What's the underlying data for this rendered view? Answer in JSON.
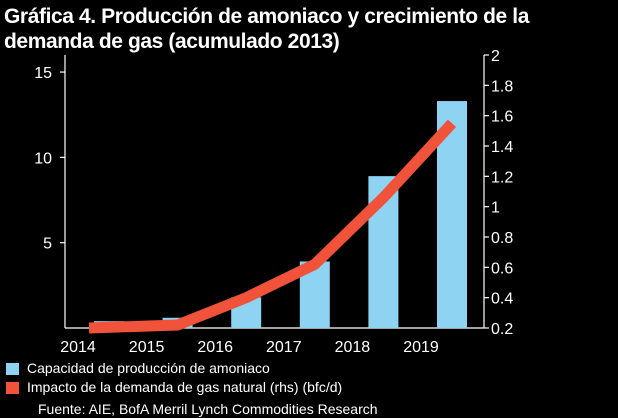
{
  "title": "Gráfica 4. Producción de amoniaco y crecimiento de la demanda de gas (acumulado 2013)",
  "source": "Fuente: AIE, BofA Merril Lynch Commodities Research",
  "colors": {
    "background": "#000000",
    "bars": "#8ed3f2",
    "line": "#f0523a",
    "text": "#ffffff"
  },
  "chart_data": {
    "type": "bar+line",
    "title": "Gráfica 4. Producción de amoniaco y crecimiento de la demanda de gas (acumulado 2013)",
    "x_ticks": [
      "2014",
      "2015",
      "2016",
      "2017",
      "2018",
      "2019"
    ],
    "y_left": {
      "ticks": [
        "5",
        "10",
        "15"
      ],
      "range": [
        0,
        16
      ]
    },
    "y_right": {
      "ticks": [
        "0.2",
        "0.4",
        "0.6",
        "0.8",
        "1",
        "1.2",
        "1.4",
        "1.6",
        "1.8",
        "2"
      ],
      "range": [
        0.2,
        2
      ]
    },
    "grid": false,
    "legend_position": "bottom",
    "series": [
      {
        "name": "Capacidad de producción de amoniaco",
        "type": "bar",
        "axis": "left",
        "x": [
          2014,
          2015,
          2016,
          2017,
          2018,
          2019
        ],
        "values": [
          0.4,
          0.6,
          1.8,
          3.9,
          8.9,
          13.3
        ]
      },
      {
        "name": "Impacto de la demanda de gas natural (rhs) (bfc/d)",
        "type": "line",
        "axis": "right",
        "x": [
          2014,
          2015,
          2016,
          2017,
          2018,
          2019
        ],
        "values": [
          0.2,
          0.22,
          0.4,
          0.62,
          1.06,
          1.55
        ]
      }
    ]
  }
}
